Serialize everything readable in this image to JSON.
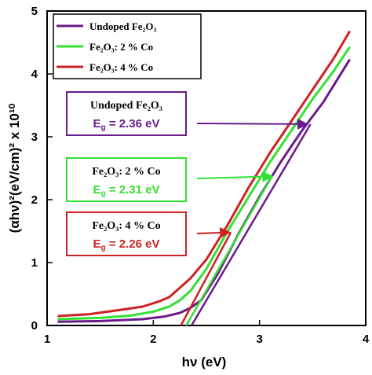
{
  "chart_data": {
    "type": "line",
    "xlabel": "hν (eV)",
    "ylabel": "(αhν)²(eV/cm)² x 10¹⁰",
    "xlim": [
      1,
      4
    ],
    "ylim": [
      0,
      5
    ],
    "x_ticks": [
      "1",
      "2",
      "3",
      "4"
    ],
    "y_ticks": [
      "0",
      "1",
      "2",
      "3",
      "4",
      "5"
    ],
    "grid": false,
    "legend_position": "top-left",
    "series": [
      {
        "name": "Undoped Fe₂O₃",
        "color": "#6a1b8a",
        "points": [
          [
            1.1,
            0.06
          ],
          [
            1.5,
            0.07
          ],
          [
            1.9,
            0.1
          ],
          [
            2.1,
            0.14
          ],
          [
            2.25,
            0.2
          ],
          [
            2.35,
            0.28
          ],
          [
            2.45,
            0.4
          ],
          [
            2.6,
            0.8
          ],
          [
            2.8,
            1.45
          ],
          [
            3.0,
            2.05
          ],
          [
            3.2,
            2.6
          ],
          [
            3.4,
            3.1
          ],
          [
            3.6,
            3.55
          ],
          [
            3.85,
            4.23
          ]
        ],
        "fit_line": [
          [
            2.36,
            0
          ],
          [
            3.48,
            3.2
          ]
        ]
      },
      {
        "name": "Fe₂O₃: 2 % Co",
        "color": "#33e033",
        "points": [
          [
            1.1,
            0.1
          ],
          [
            1.5,
            0.12
          ],
          [
            1.8,
            0.16
          ],
          [
            2.0,
            0.22
          ],
          [
            2.15,
            0.3
          ],
          [
            2.25,
            0.4
          ],
          [
            2.35,
            0.55
          ],
          [
            2.5,
            0.9
          ],
          [
            2.7,
            1.5
          ],
          [
            2.9,
            2.05
          ],
          [
            3.1,
            2.6
          ],
          [
            3.3,
            3.1
          ],
          [
            3.5,
            3.6
          ],
          [
            3.7,
            4.05
          ],
          [
            3.85,
            4.43
          ]
        ],
        "fit_line": [
          [
            2.31,
            0
          ],
          [
            3.12,
            2.38
          ]
        ]
      },
      {
        "name": "Fe₂O₃: 4 % Co",
        "color": "#cc2222",
        "points": [
          [
            1.1,
            0.15
          ],
          [
            1.4,
            0.18
          ],
          [
            1.7,
            0.25
          ],
          [
            1.9,
            0.3
          ],
          [
            2.05,
            0.38
          ],
          [
            2.15,
            0.45
          ],
          [
            2.25,
            0.6
          ],
          [
            2.35,
            0.75
          ],
          [
            2.5,
            1.05
          ],
          [
            2.7,
            1.6
          ],
          [
            2.9,
            2.2
          ],
          [
            3.1,
            2.75
          ],
          [
            3.3,
            3.25
          ],
          [
            3.5,
            3.75
          ],
          [
            3.7,
            4.25
          ],
          [
            3.85,
            4.68
          ]
        ],
        "fit_line": [
          [
            2.26,
            0
          ],
          [
            2.73,
            1.48
          ]
        ]
      }
    ],
    "annotations": [
      {
        "label": "Undoped Fe₂O₃",
        "value": "E",
        "sub": "g",
        "rest": " = 2.36 eV",
        "color": "#6a1b8a",
        "arrow_to": [
          3.45,
          3.2
        ]
      },
      {
        "label": "Fe₂O₃: 2 % Co",
        "value": "E",
        "sub": "g",
        "rest": " = 2.31 eV",
        "color": "#33e033",
        "arrow_to": [
          3.12,
          2.37
        ]
      },
      {
        "label": "Fe₂O₃: 4 % Co",
        "value": "E",
        "sub": "g",
        "rest": " = 2.26 eV",
        "color": "#cc2222",
        "arrow_to": [
          2.72,
          1.48
        ]
      }
    ]
  }
}
